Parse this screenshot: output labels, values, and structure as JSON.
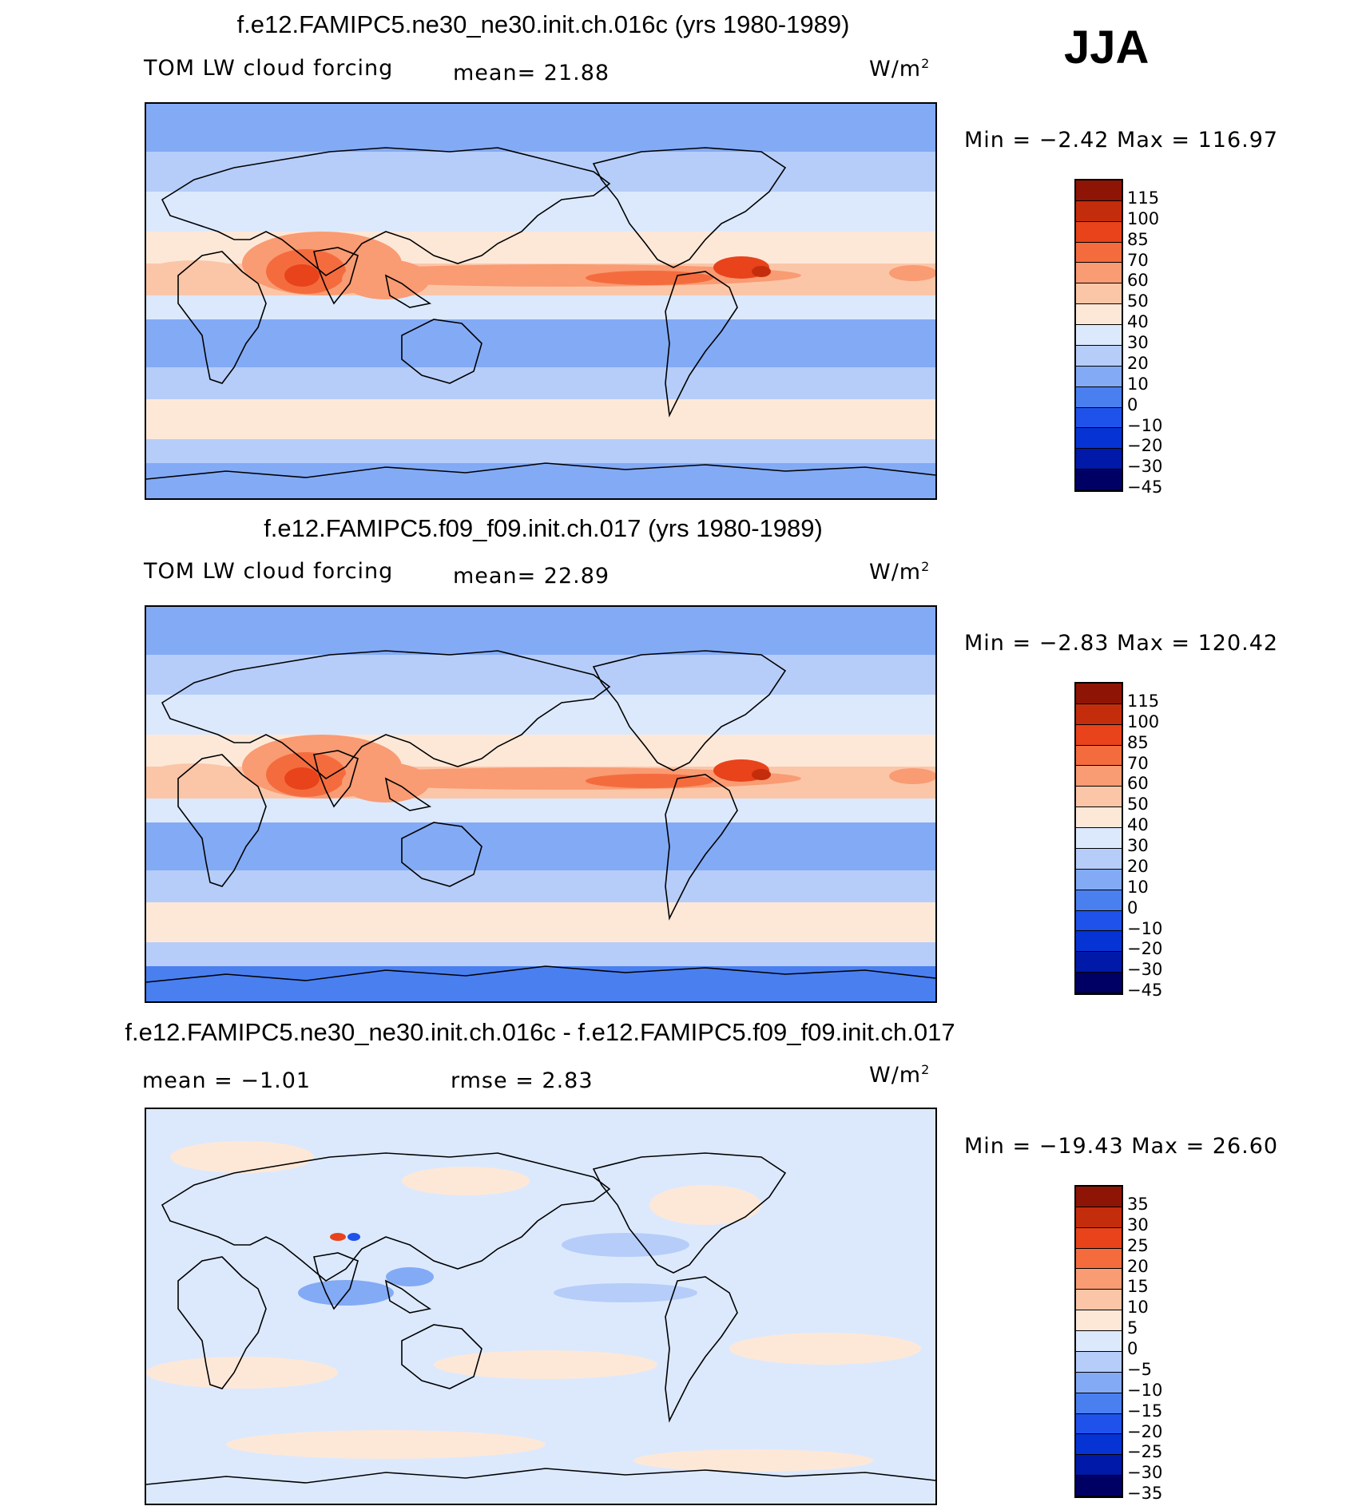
{
  "season": "JJA",
  "colors": {
    "sequential": [
      "#000064",
      "#0019a8",
      "#0633d3",
      "#1f52eb",
      "#4a7ff0",
      "#83aaf5",
      "#b6cdf9",
      "#dce9fd",
      "#fde8d8",
      "#fbc6a8",
      "#f99b73",
      "#f46c3e",
      "#e8431b",
      "#c42d0c",
      "#8e1405"
    ]
  },
  "panels": [
    {
      "title": "f.e12.FAMIPC5.ne30_ne30.init.ch.016c (yrs 1980-1989)",
      "variable": "TOM LW cloud forcing",
      "stat1": "mean=   21.88",
      "stat2": "",
      "units": "W/m",
      "units_exp": "2",
      "minmax": "Min  =   −2.42  Max  =  116.97",
      "levels": [
        "115",
        "100",
        "85",
        "70",
        "60",
        "50",
        "40",
        "30",
        "20",
        "10",
        "0",
        "−10",
        "−20",
        "−30",
        "−45"
      ],
      "kind": "abs"
    },
    {
      "title": "f.e12.FAMIPC5.f09_f09.init.ch.017 (yrs 1980-1989)",
      "variable": "TOM LW cloud forcing",
      "stat1": "mean=   22.89",
      "stat2": "",
      "units": "W/m",
      "units_exp": "2",
      "minmax": "Min  =   −2.83  Max  =  120.42",
      "levels": [
        "115",
        "100",
        "85",
        "70",
        "60",
        "50",
        "40",
        "30",
        "20",
        "10",
        "0",
        "−10",
        "−20",
        "−30",
        "−45"
      ],
      "kind": "abs"
    },
    {
      "title": "f.e12.FAMIPC5.ne30_ne30.init.ch.016c - f.e12.FAMIPC5.f09_f09.init.ch.017",
      "variable": "",
      "stat1": "mean  =   −1.01",
      "stat2": "rmse  =     2.83",
      "units": "W/m",
      "units_exp": "2",
      "minmax": "Min  =  −19.43  Max  =    26.60",
      "levels": [
        "35",
        "30",
        "25",
        "20",
        "15",
        "10",
        "5",
        "0",
        "−5",
        "−10",
        "−15",
        "−20",
        "−25",
        "−30",
        "−35"
      ],
      "kind": "diff"
    }
  ]
}
